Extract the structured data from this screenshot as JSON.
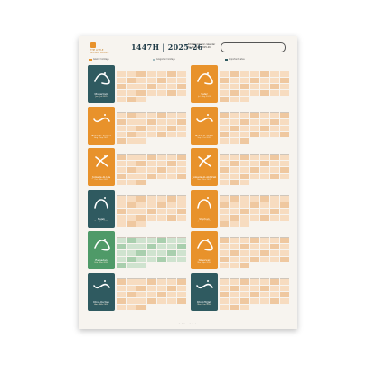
{
  "header": {
    "title": "1447H | 2025-26",
    "subtitle": "Editable Islamic calendar for the year 2025-26",
    "logo_text": "THE LITTLE MUSLIM BOOKS"
  },
  "colors": {
    "orange": "#e8922b",
    "teal": "#2f5a60",
    "green": "#4f9a68",
    "cell_light": "#f7dcc0",
    "cell_mid": "#efc8a0",
    "cell_green": "#cfe3cf",
    "cell_green_mid": "#a9cfae"
  },
  "legend": [
    {
      "label": "Islamic holidays",
      "color": "#e8922b"
    },
    {
      "label": "Gregorian holidays",
      "color": "#a3bcc0"
    },
    {
      "label": "Important dates",
      "color": "#2f5a60"
    }
  ],
  "months_left": [
    {
      "name": "Muharram",
      "sub": "Jun - Jul 2025",
      "color": "teal",
      "grid": "orange"
    },
    {
      "name": "Rabi' Al-Awwal",
      "sub": "Aug - Sep 2025",
      "color": "orange",
      "grid": "orange"
    },
    {
      "name": "Jumada Al-Ula",
      "sub": "Oct - Nov 2025",
      "color": "orange",
      "grid": "orange"
    },
    {
      "name": "Rajab",
      "sub": "Dec - Jan 2026",
      "color": "teal",
      "grid": "orange"
    },
    {
      "name": "Ramadan",
      "sub": "Feb - Mar 2026",
      "color": "green",
      "grid": "green"
    },
    {
      "name": "Dhul-Qa'dah",
      "sub": "Apr - May 2026",
      "color": "teal",
      "grid": "orange"
    }
  ],
  "months_right": [
    {
      "name": "Safar",
      "sub": "Jul - Aug 2025",
      "color": "orange",
      "grid": "orange"
    },
    {
      "name": "Rabi' Al-Akhir",
      "sub": "Sep - Oct 2025",
      "color": "orange",
      "grid": "orange"
    },
    {
      "name": "Jumada Al-Akhirah",
      "sub": "Nov - Dec 2025",
      "color": "orange",
      "grid": "orange"
    },
    {
      "name": "Sha'ban",
      "sub": "Jan - Feb 2026",
      "color": "orange",
      "grid": "orange"
    },
    {
      "name": "Shawwal",
      "sub": "Mar - Apr 2026",
      "color": "orange",
      "grid": "orange"
    },
    {
      "name": "Dhul-Hijjah",
      "sub": "May - Jun 2026",
      "color": "teal",
      "grid": "orange"
    }
  ],
  "footer": "www.thelittlemuslimbooks.com"
}
